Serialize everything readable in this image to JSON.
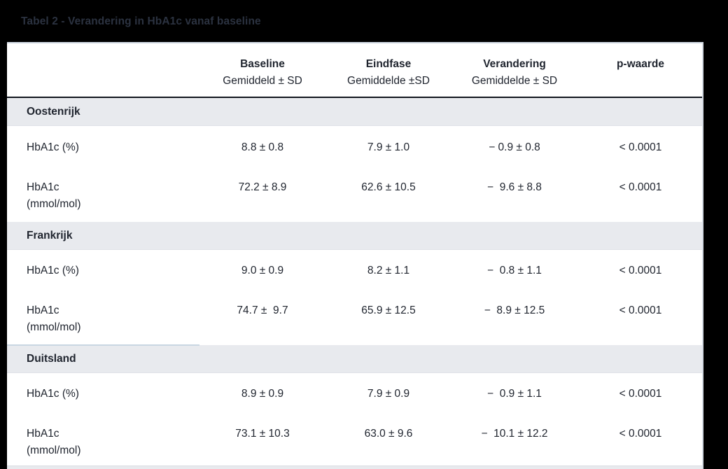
{
  "title": "Tabel 2 - Verandering in HbA1c vanaf baseline",
  "colors": {
    "page_background": "#000000",
    "table_background": "#ffffff",
    "group_row_background": "#e8eaee",
    "header_border": "#11151d",
    "row_divider": "#dfe2e7",
    "highlight_divider": "#c9d6e3",
    "text": "#20252f",
    "title_text": "#2b3240"
  },
  "table": {
    "columns": [
      {
        "label": "",
        "sub": ""
      },
      {
        "label": "Baseline",
        "sub": "Gemiddeld ± SD"
      },
      {
        "label": "Eindfase",
        "sub": "Gemiddelde ±SD"
      },
      {
        "label": "Verandering",
        "sub": "Gemiddelde ± SD"
      },
      {
        "label": "p-waarde",
        "sub": ""
      }
    ],
    "groups": [
      {
        "name": "Oostenrijk",
        "rows": [
          {
            "label": "HbA1c (%)",
            "label2": "",
            "baseline": "8.8 ± 0.8",
            "eindfase": "7.9 ± 1.0",
            "verandering": "− 0.9 ± 0.8",
            "p": "< 0.0001"
          },
          {
            "label": "HbA1c",
            "label2": "(mmol/mol)",
            "baseline": "72.2 ± 8.9",
            "eindfase": "62.6 ± 10.5",
            "verandering": "−  9.6 ± 8.8",
            "p": "< 0.0001"
          }
        ]
      },
      {
        "name": "Frankrijk",
        "rows": [
          {
            "label": "HbA1c (%)",
            "label2": "",
            "baseline": "9.0 ± 0.9",
            "eindfase": "8.2 ± 1.1",
            "verandering": "−  0.8 ± 1.1",
            "p": "< 0.0001"
          },
          {
            "label": "HbA1c",
            "label2": "(mmol/mol)",
            "baseline": "74.7 ±  9.7",
            "eindfase": "65.9 ± 12.5",
            "verandering": "−  8.9 ± 12.5",
            "p": "< 0.0001"
          }
        ]
      },
      {
        "name": "Duitsland",
        "rows": [
          {
            "label": "HbA1c (%)",
            "label2": "",
            "baseline": "8.9 ± 0.9",
            "eindfase": "7.9 ± 0.9",
            "verandering": "−  0.9 ± 1.1",
            "p": "< 0.0001"
          },
          {
            "label": "HbA1c",
            "label2": "(mmol/mol)",
            "baseline": "73.1 ± 10.3",
            "eindfase": "63.0 ± 9.6",
            "verandering": "−  10.1 ± 12.2",
            "p": "< 0.0001"
          }
        ]
      }
    ]
  }
}
